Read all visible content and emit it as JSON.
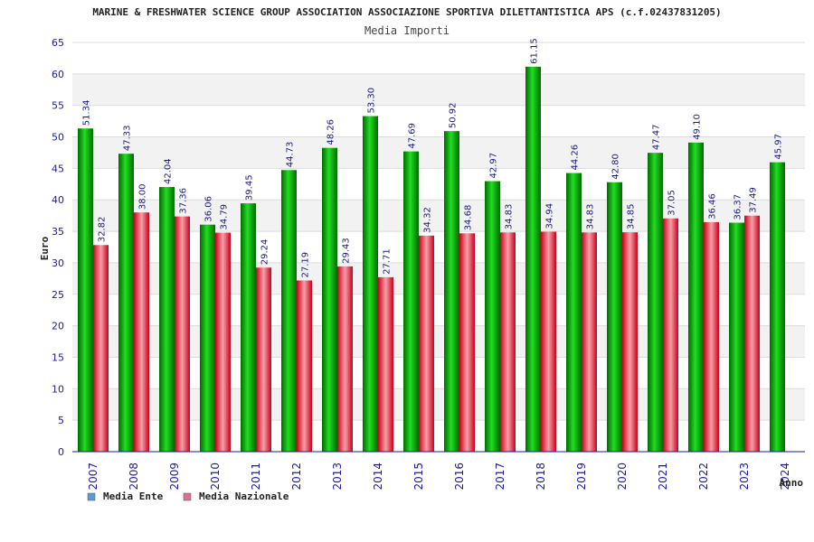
{
  "chart_data": {
    "type": "bar",
    "title": "MARINE & FRESHWATER SCIENCE GROUP ASSOCIATION ASSOCIAZIONE SPORTIVA DILETTANTISTICA APS (c.f.02437831205)",
    "subtitle": "Media Importi",
    "xlabel": "Anno",
    "ylabel": "Euro",
    "ylim": [
      0,
      65
    ],
    "ytick_step": 5,
    "grid": true,
    "legend_position": "bottom-left",
    "categories": [
      "2007",
      "2008",
      "2009",
      "2010",
      "2011",
      "2012",
      "2013",
      "2014",
      "2015",
      "2016",
      "2017",
      "2018",
      "2019",
      "2020",
      "2021",
      "2022",
      "2023",
      "2024"
    ],
    "series": [
      {
        "name": "Media Ente",
        "color": "#00aa00",
        "legend_color": "#5b9bd5",
        "values": [
          51.34,
          47.33,
          42.04,
          36.06,
          39.45,
          44.73,
          48.26,
          53.3,
          47.69,
          50.92,
          42.97,
          61.15,
          44.26,
          42.8,
          47.47,
          49.1,
          36.37,
          45.97
        ],
        "labels": [
          "51.34",
          "47.33",
          "42.04",
          "36.06",
          "39.45",
          "44.73",
          "48.26",
          "53.30",
          "47.69",
          "50.92",
          "42.97",
          "61.15",
          "44.26",
          "42.80",
          "47.47",
          "49.10",
          "36.37",
          "45.97"
        ]
      },
      {
        "name": "Media Nazionale",
        "color": "#e0202a",
        "legend_color": "#d87093",
        "values": [
          32.82,
          38.0,
          37.36,
          34.79,
          29.24,
          27.19,
          29.43,
          27.71,
          34.32,
          34.68,
          34.83,
          34.94,
          34.83,
          34.85,
          37.05,
          36.46,
          37.49,
          null
        ],
        "labels": [
          "32.82",
          "38.00",
          "37.36",
          "34.79",
          "29.24",
          "27.19",
          "29.43",
          "27.71",
          "34.32",
          "34.68",
          "34.83",
          "34.94",
          "34.83",
          "34.85",
          "37.05",
          "36.46",
          "37.49",
          null
        ]
      }
    ]
  }
}
